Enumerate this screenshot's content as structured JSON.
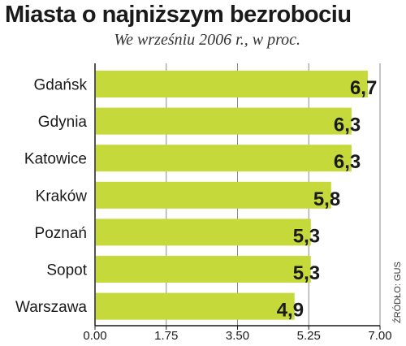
{
  "chart_data": {
    "type": "bar",
    "orientation": "horizontal",
    "title": "Miasta o najniższym bezrobociu",
    "subtitle": "We wrześniu 2006 r., w proc.",
    "categories": [
      "Gdańsk",
      "Gdynia",
      "Katowice",
      "Kraków",
      "Poznań",
      "Sopot",
      "Warszawa"
    ],
    "values": [
      6.7,
      6.3,
      6.3,
      5.8,
      5.3,
      5.3,
      4.9
    ],
    "value_labels": [
      "6,7",
      "6,3",
      "6,3",
      "5,8",
      "5,3",
      "5,3",
      "4,9"
    ],
    "xlim": [
      0,
      7
    ],
    "ticks": [
      0,
      1.75,
      3.5,
      5.25,
      7
    ],
    "tick_labels": [
      "0.00",
      "1.75",
      "3.50",
      "5.25",
      "7.00"
    ],
    "grid": true,
    "source": "ŹRÓDŁO: GUS",
    "colors": {
      "bar": "#c5d93a",
      "grid": "#8a8a8a",
      "axis": "#1a1a1a"
    }
  }
}
